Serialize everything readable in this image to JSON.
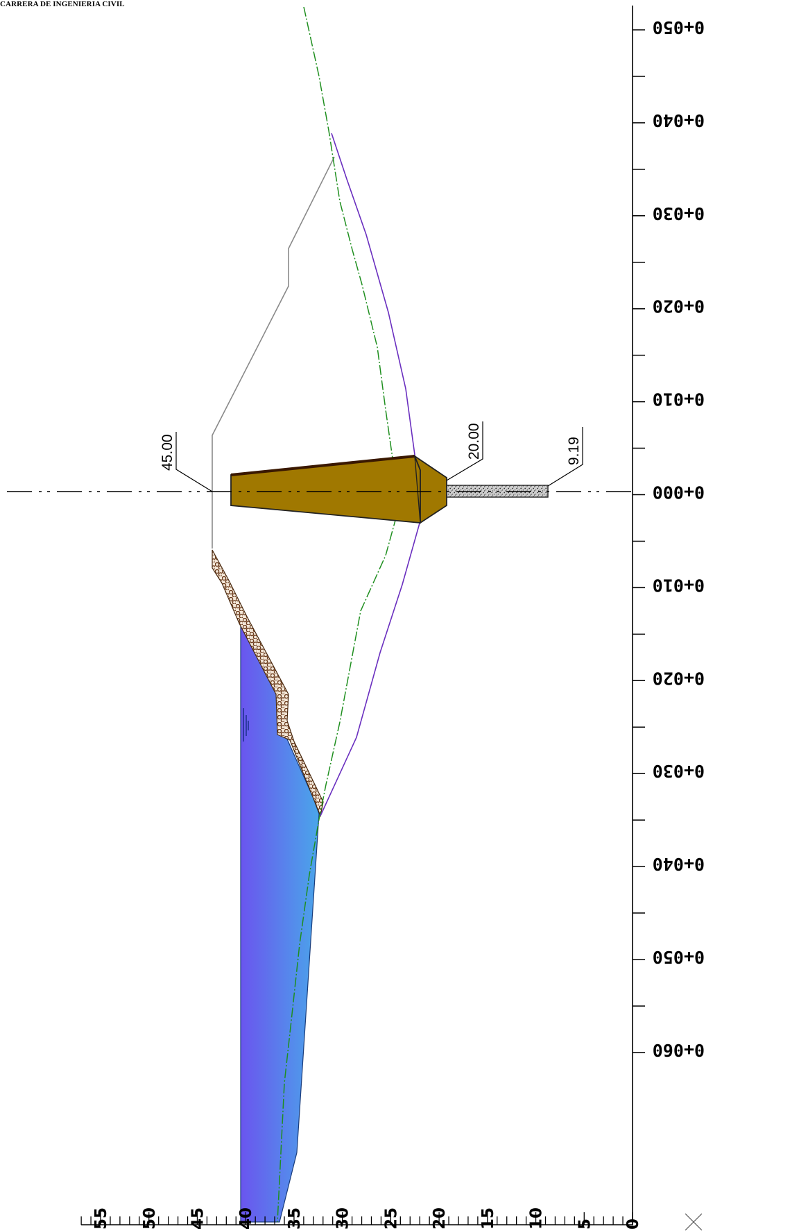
{
  "header": {
    "title": "CARRERA DE INGENIERIA CIVIL"
  },
  "stations": {
    "labels": [
      "0+050",
      "0+040",
      "0+030",
      "0+020",
      "0+010",
      "0+000",
      "0+010",
      "0+020",
      "0+030",
      "0+040",
      "0+050",
      "0+060"
    ]
  },
  "elevation_axis": {
    "labels": [
      "55",
      "50",
      "45",
      "40",
      "35",
      "30",
      "25",
      "20",
      "15",
      "10",
      "5",
      "0"
    ]
  },
  "annotations": {
    "dam_crest": "45.00",
    "dam_toe": "20.00",
    "apron_end": "9.19"
  },
  "colors": {
    "dam_fill": "#a07800",
    "dam_top": "#3a1800",
    "water_top": "#4aa6ea",
    "water_bottom": "#6a55ee",
    "ground_line": "#1f8f1f",
    "excavation_line": "#6a2fbf",
    "outline_gray": "#8a8a8a",
    "riprap": "#7a4a2a"
  },
  "icons": {
    "corner": "cross-icon"
  }
}
